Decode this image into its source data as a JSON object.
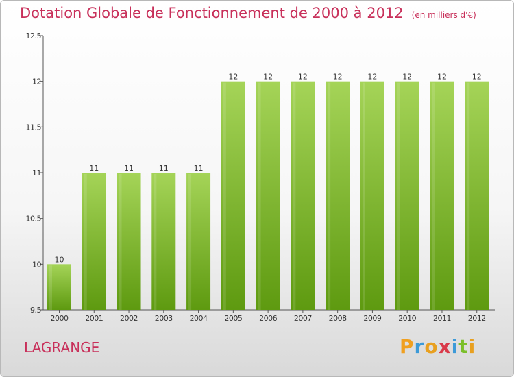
{
  "header": {
    "title": "Dotation Globale de Fonctionnement de 2000 à 2012",
    "subtitle": "(en milliers d'€)"
  },
  "footer": {
    "commune": "LAGRANGE",
    "brand": "Proxiti"
  },
  "colors": {
    "title": "#c8305a",
    "bar_light": "#a5d458",
    "bar_dark": "#5e9a10",
    "axis": "#555555",
    "brand_letters": [
      "#f0a020",
      "#3c9ad8",
      "#e8a020",
      "#d93a4a",
      "#3c9ad8",
      "#7bbf2a",
      "#e8a020"
    ]
  },
  "chart_data": {
    "type": "bar",
    "title": "Dotation Globale de Fonctionnement de 2000 à 2012",
    "subtitle": "(en milliers d'€)",
    "categories": [
      "2000",
      "2001",
      "2002",
      "2003",
      "2004",
      "2005",
      "2006",
      "2007",
      "2008",
      "2009",
      "2010",
      "2011",
      "2012"
    ],
    "values": [
      10,
      11,
      11,
      11,
      11,
      12,
      12,
      12,
      12,
      12,
      12,
      12,
      12
    ],
    "data_labels": [
      "10",
      "11",
      "11",
      "11",
      "11",
      "12",
      "12",
      "12",
      "12",
      "12",
      "12",
      "12",
      "12"
    ],
    "ylim": [
      9.5,
      12.5
    ],
    "yticks": [
      9.5,
      10,
      10.5,
      11,
      11.5,
      12,
      12.5
    ],
    "ytick_labels": [
      "9.5",
      "10",
      "10.5",
      "11",
      "11.5",
      "12",
      "12.5"
    ],
    "xlabel": "",
    "ylabel": "",
    "grid": false,
    "legend": "none"
  }
}
